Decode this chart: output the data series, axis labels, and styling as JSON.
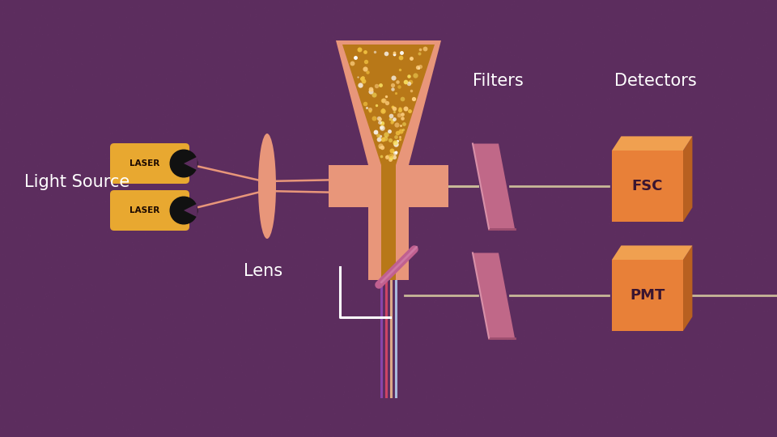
{
  "bg_color": "#5c2d5e",
  "text_color": "#ffffff",
  "dark_text_color": "#3a1530",
  "salmon": "#e8967a",
  "gold": "#e8a830",
  "gold_dark": "#b87818",
  "pink_filter": "#c06888",
  "pink_filter_light": "#d890a8",
  "pink_filter_dark": "#a05070",
  "orange_box": "#e88038",
  "orange_box_top": "#f0a050",
  "orange_box_side": "#b86020",
  "line_color": "#c8b898",
  "mirror_color": "#c06090",
  "labels": {
    "light_source": "Light Source",
    "lens": "Lens",
    "filters": "Filters",
    "detectors": "Detectors",
    "fsc": "FSC",
    "pmt": "PMT",
    "laser": "LASER"
  },
  "vert_colors": [
    "#8844aa",
    "#cc4466",
    "#ddaa88",
    "#aabbdd"
  ],
  "sparkle_colors": [
    "#f8e060",
    "#ffffff",
    "#f0c040",
    "#ffd080"
  ]
}
